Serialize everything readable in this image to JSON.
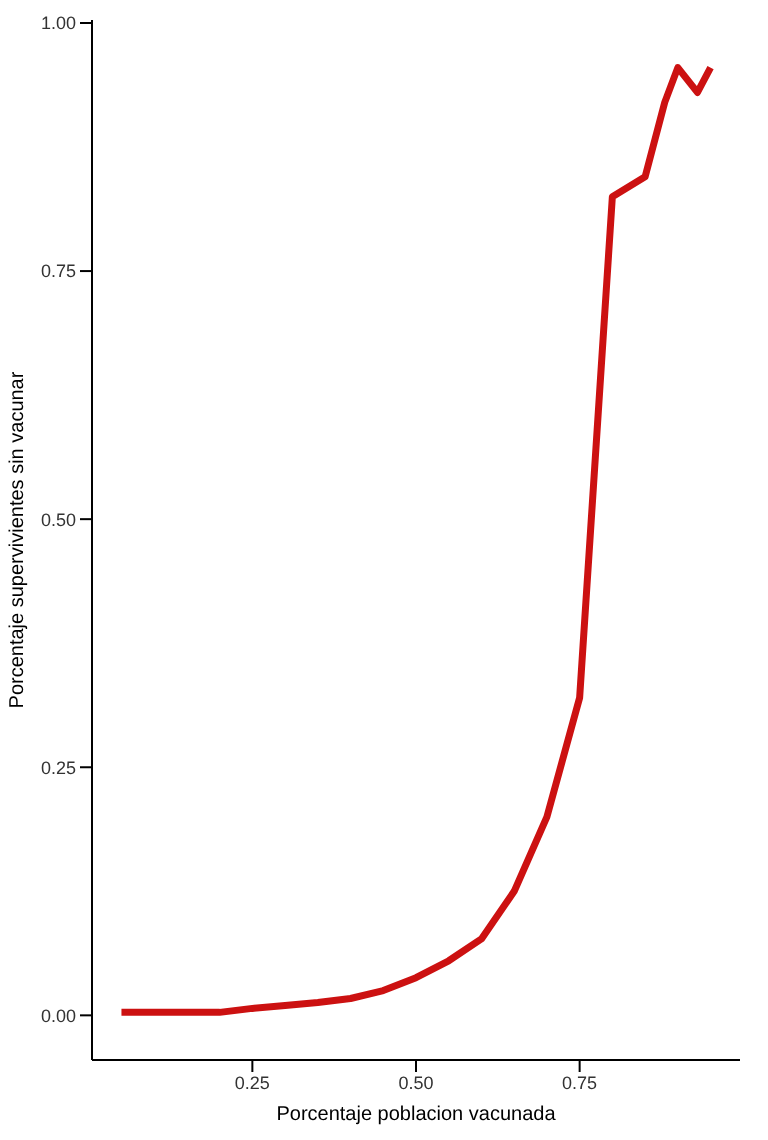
{
  "chart_data": {
    "type": "line",
    "xlabel": "Porcentaje poblacion vacunada",
    "ylabel": "Porcentaje supervivientes sin vacunar",
    "x": [
      0.05,
      0.1,
      0.15,
      0.2,
      0.25,
      0.3,
      0.35,
      0.4,
      0.45,
      0.5,
      0.55,
      0.6,
      0.65,
      0.7,
      0.75,
      0.8,
      0.85,
      0.88,
      0.9,
      0.93,
      0.95
    ],
    "series": [
      {
        "color": "#cc1111",
        "values": [
          0.003,
          0.003,
          0.003,
          0.003,
          0.007,
          0.01,
          0.013,
          0.017,
          0.025,
          0.038,
          0.055,
          0.077,
          0.125,
          0.2,
          0.32,
          0.825,
          0.845,
          0.92,
          0.955,
          0.93,
          0.955
        ]
      }
    ],
    "xlim": [
      0.005,
      0.995
    ],
    "xticks": [
      0.25,
      {
        "value": 0.5,
        "label": "0.50"
      },
      0.75
    ],
    "ylim": [
      -0.045,
      1.003
    ],
    "yticks": [
      {
        "value": 0,
        "label": "0.00"
      },
      0.25,
      {
        "value": 0.5,
        "label": "0.50"
      },
      0.75,
      {
        "value": 1,
        "label": "1.00"
      }
    ],
    "grid": false,
    "legend": false,
    "marker": "none",
    "line_style": "solid"
  }
}
